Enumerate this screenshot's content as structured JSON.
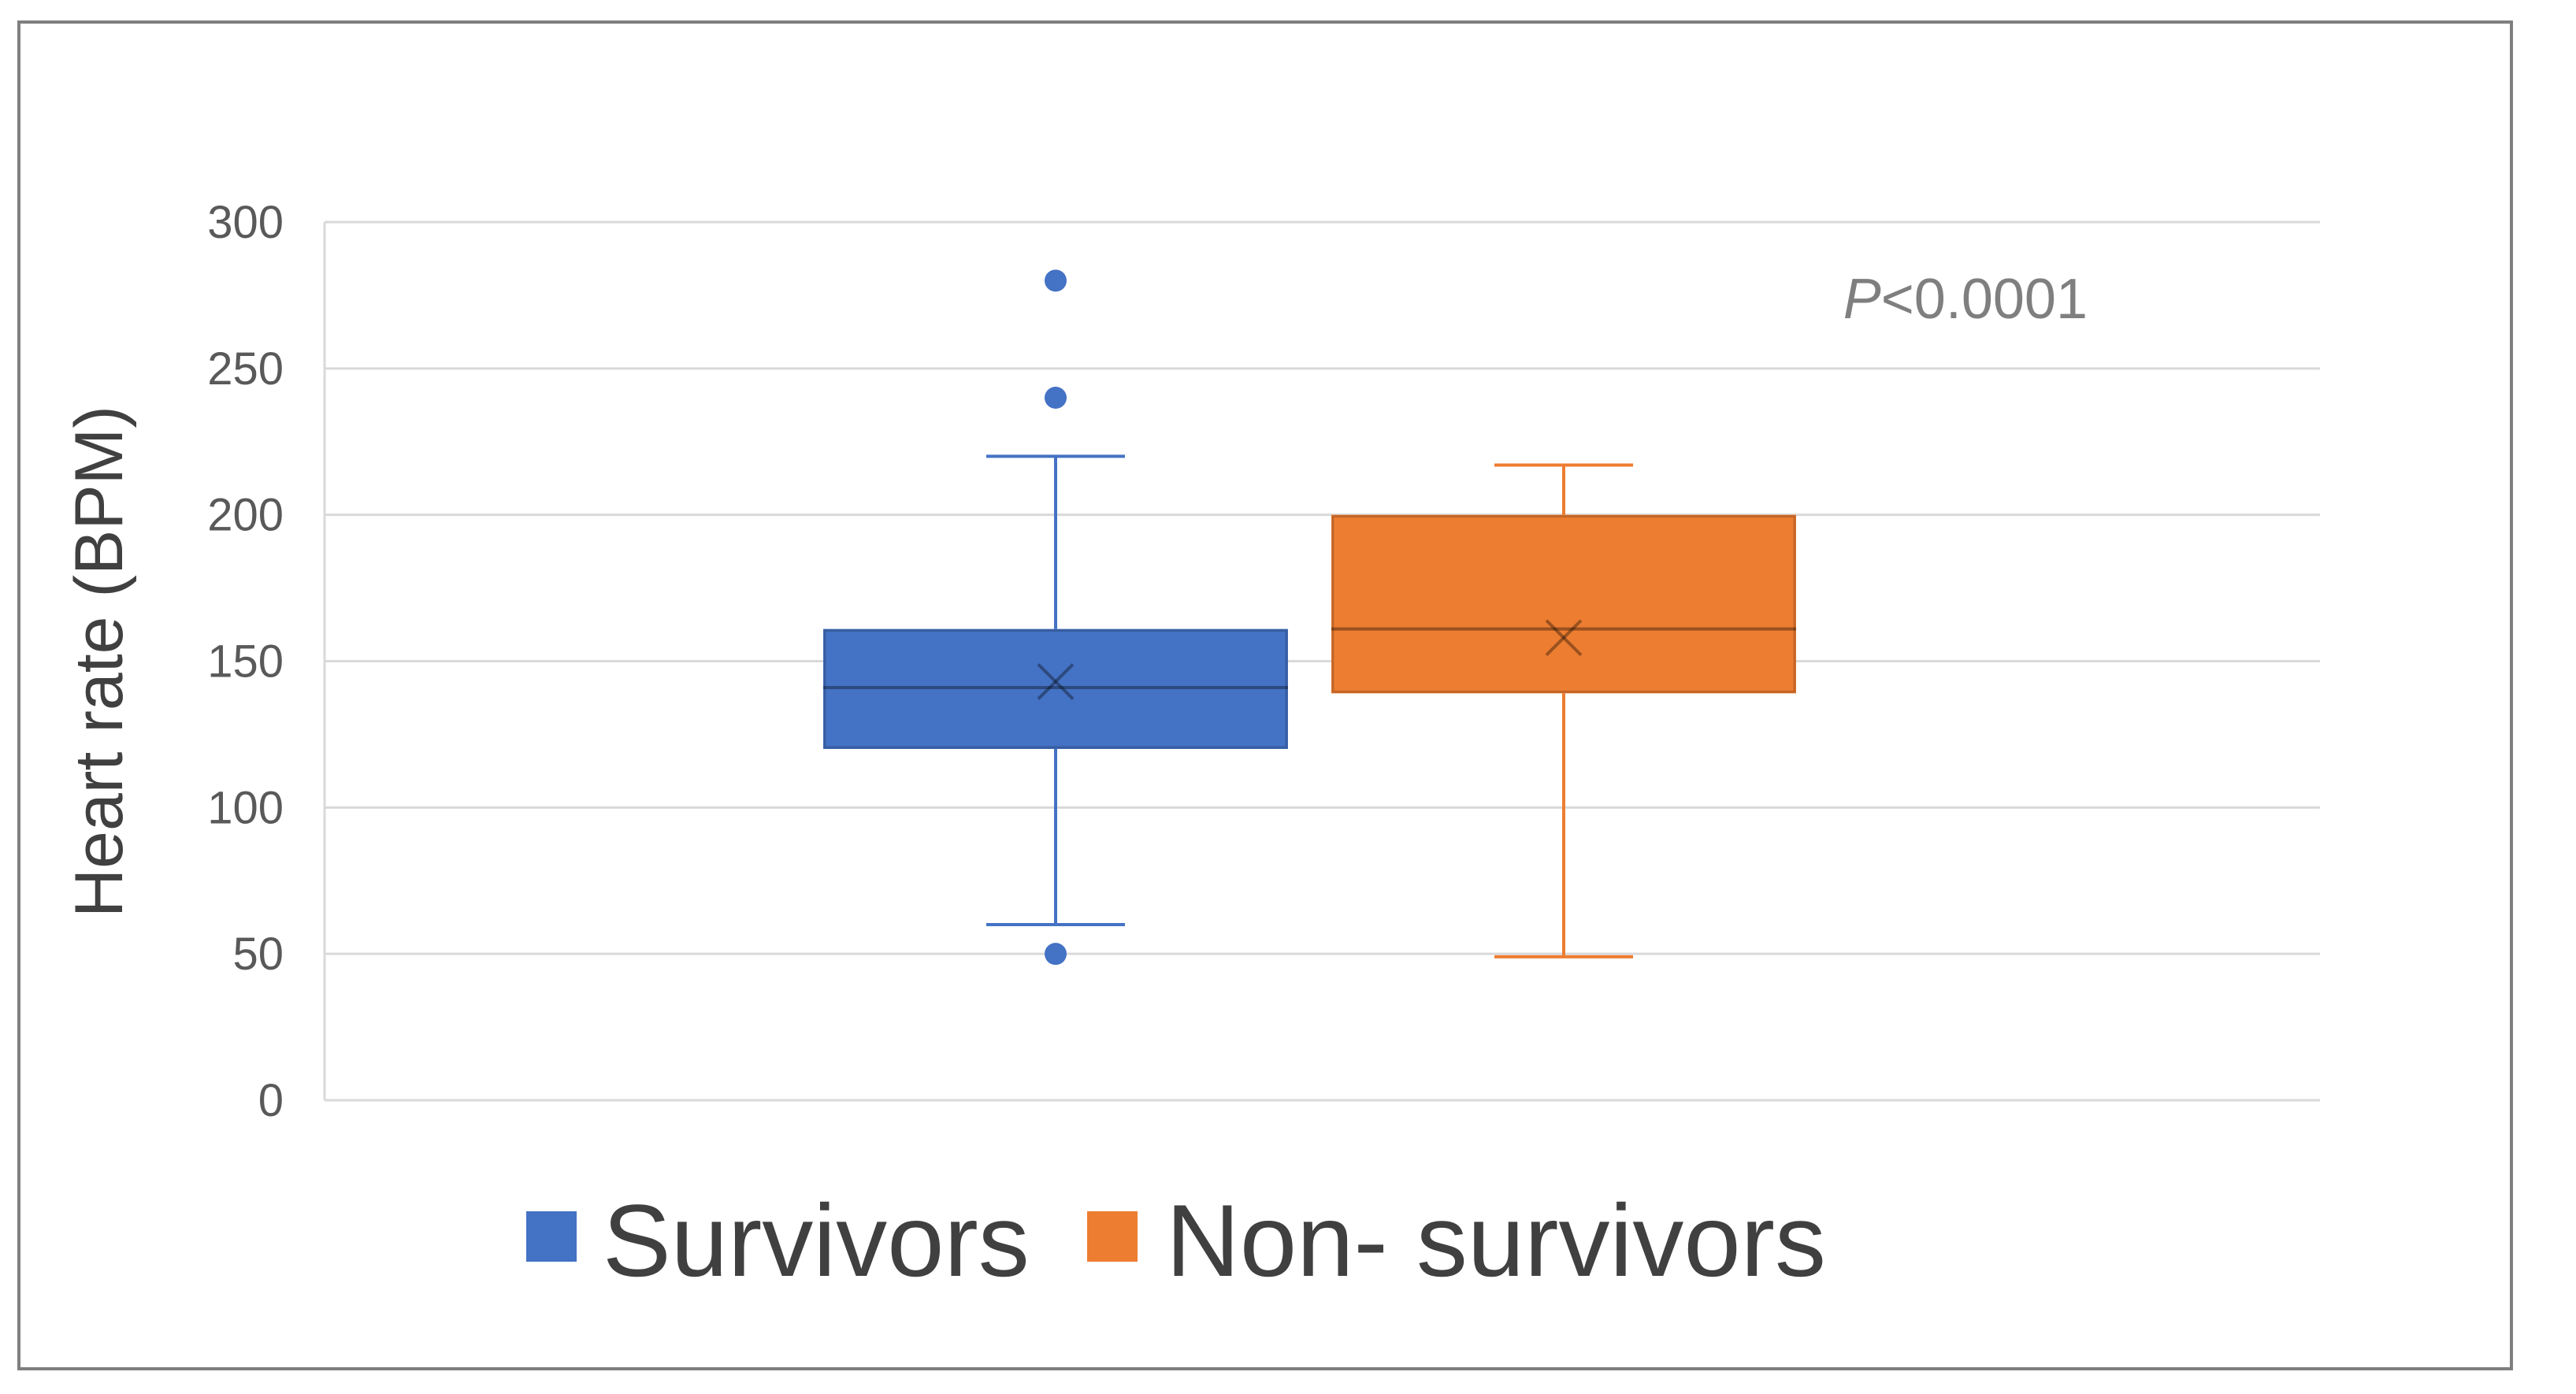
{
  "chart_data": {
    "type": "box",
    "title": "",
    "xlabel": "",
    "ylabel": "Heart rate (BPM)",
    "ylim": [
      0,
      300
    ],
    "yticks": [
      0,
      50,
      100,
      150,
      200,
      250,
      300
    ],
    "grid": true,
    "legend_position": "bottom",
    "annotation": {
      "italic": "P",
      "text": "<0.0001"
    },
    "series": [
      {
        "name": "Survivors",
        "color": "#4472c4",
        "whisker_low": 60,
        "q1": 120,
        "median": 141,
        "mean": 143,
        "q3": 161,
        "whisker_high": 220,
        "outliers": [
          280,
          240,
          50
        ]
      },
      {
        "name": "Non- survivors",
        "color": "#ed7d31",
        "whisker_low": 49,
        "q1": 139,
        "median": 161,
        "mean": 158,
        "q3": 200,
        "whisker_high": 217,
        "outliers": []
      }
    ]
  }
}
